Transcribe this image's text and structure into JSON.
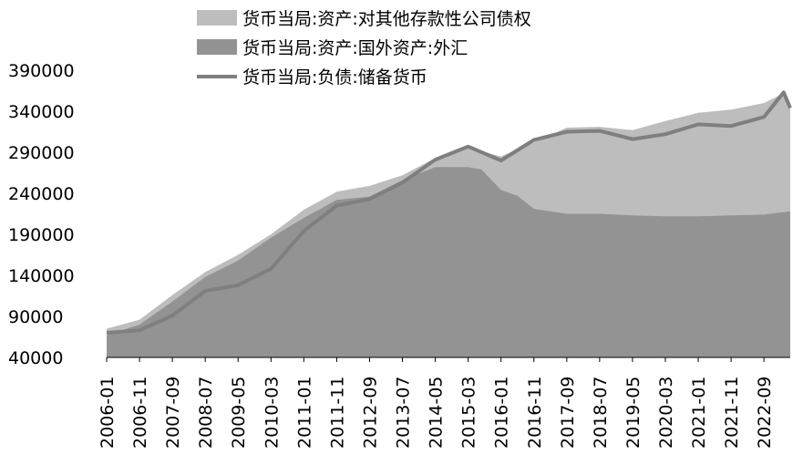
{
  "chart_data": {
    "type": "area",
    "title": "",
    "xlabel": "",
    "ylabel": "",
    "ylim": [
      40000,
      390000
    ],
    "yticks": [
      "390000",
      "340000",
      "290000",
      "240000",
      "190000",
      "140000",
      "90000",
      "40000"
    ],
    "xticks": [
      "2006-01",
      "2006-11",
      "2007-09",
      "2008-07",
      "2009-05",
      "2010-03",
      "2011-01",
      "2011-11",
      "2012-09",
      "2013-07",
      "2014-05",
      "2015-03",
      "2016-01",
      "2016-11",
      "2017-09",
      "2018-07",
      "2019-05",
      "2020-03",
      "2021-01",
      "2021-11",
      "2022-09"
    ],
    "grid": false,
    "legend_position": "top",
    "series": [
      {
        "name": "货币当局:资产:对其他存款性公司债权",
        "kind": "area",
        "color": "#bdbdbd",
        "points": [
          [
            "2006-01",
            75000
          ],
          [
            "2006-11",
            86000
          ],
          [
            "2007-09",
            116000
          ],
          [
            "2008-07",
            144000
          ],
          [
            "2009-05",
            165000
          ],
          [
            "2010-03",
            190000
          ],
          [
            "2011-01",
            220000
          ],
          [
            "2011-11",
            242000
          ],
          [
            "2012-09",
            249000
          ],
          [
            "2013-07",
            262000
          ],
          [
            "2014-05",
            283000
          ],
          [
            "2015-03",
            295000
          ],
          [
            "2016-01",
            285000
          ],
          [
            "2016-11",
            302000
          ],
          [
            "2017-09",
            320000
          ],
          [
            "2018-07",
            321000
          ],
          [
            "2019-05",
            317000
          ],
          [
            "2020-03",
            328000
          ],
          [
            "2021-01",
            338000
          ],
          [
            "2021-11",
            342000
          ],
          [
            "2022-09",
            350000
          ],
          [
            "2023-03",
            362000
          ],
          [
            "2023-05",
            346000
          ]
        ]
      },
      {
        "name": "货币当局:资产:国外资产:外汇",
        "kind": "area",
        "color": "#939393",
        "points": [
          [
            "2006-01",
            67000
          ],
          [
            "2006-11",
            80000
          ],
          [
            "2007-09",
            108000
          ],
          [
            "2008-07",
            138000
          ],
          [
            "2009-05",
            158000
          ],
          [
            "2010-03",
            186000
          ],
          [
            "2011-01",
            210000
          ],
          [
            "2011-11",
            232000
          ],
          [
            "2012-09",
            236000
          ],
          [
            "2013-07",
            256000
          ],
          [
            "2014-05",
            272000
          ],
          [
            "2015-03",
            272000
          ],
          [
            "2015-07",
            269000
          ],
          [
            "2016-01",
            244000
          ],
          [
            "2016-06",
            237000
          ],
          [
            "2016-11",
            221000
          ],
          [
            "2017-09",
            215000
          ],
          [
            "2018-07",
            215000
          ],
          [
            "2019-05",
            213000
          ],
          [
            "2020-03",
            212000
          ],
          [
            "2021-01",
            212000
          ],
          [
            "2021-11",
            213000
          ],
          [
            "2022-09",
            214000
          ],
          [
            "2023-05",
            218000
          ]
        ]
      },
      {
        "name": "货币当局:负债:储备货币",
        "kind": "line",
        "color": "#7f7f7f",
        "points": [
          [
            "2006-01",
            70000
          ],
          [
            "2006-11",
            73000
          ],
          [
            "2007-09",
            91000
          ],
          [
            "2008-07",
            121000
          ],
          [
            "2009-05",
            128000
          ],
          [
            "2010-03",
            148000
          ],
          [
            "2011-01",
            194000
          ],
          [
            "2011-11",
            225000
          ],
          [
            "2012-09",
            233000
          ],
          [
            "2013-07",
            253000
          ],
          [
            "2014-05",
            281000
          ],
          [
            "2015-03",
            297000
          ],
          [
            "2016-01",
            280000
          ],
          [
            "2016-11",
            305000
          ],
          [
            "2017-09",
            315000
          ],
          [
            "2018-07",
            316000
          ],
          [
            "2019-05",
            306000
          ],
          [
            "2020-03",
            312000
          ],
          [
            "2021-01",
            324000
          ],
          [
            "2021-11",
            322000
          ],
          [
            "2022-09",
            333000
          ],
          [
            "2023-03",
            363000
          ],
          [
            "2023-05",
            344000
          ]
        ]
      }
    ]
  }
}
